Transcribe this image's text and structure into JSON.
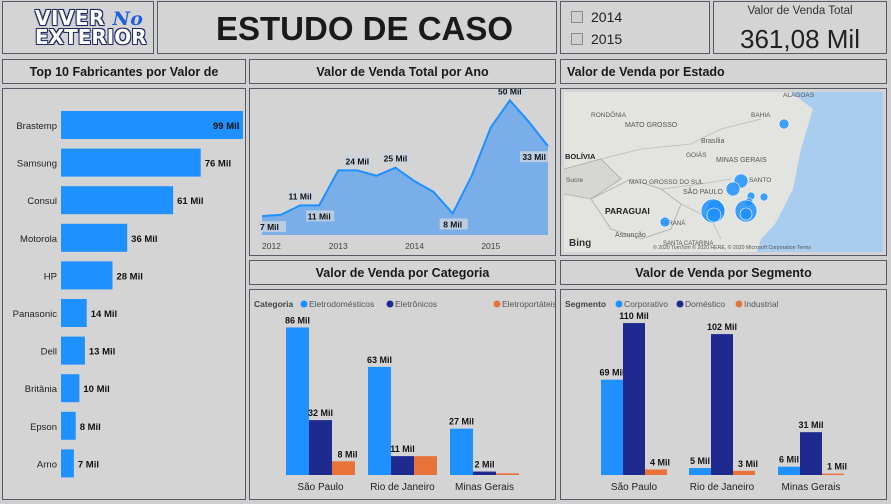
{
  "header": {
    "logo_line1": "VIVER",
    "logo_script": "No",
    "logo_line2": "EXTERIOR",
    "title": "ESTUDO DE CASO",
    "year_options": [
      "2014",
      "2015"
    ],
    "kpi_label": "Valor de Venda Total",
    "kpi_value": "361,08 Mil"
  },
  "colors": {
    "primary": "#1e90ff",
    "dark": "#1f2a8f",
    "orange": "#e8733a",
    "area": "#7aaee8"
  },
  "charts": {
    "manufacturers": {
      "title": "Top 10 Fabricantes por Valor de",
      "chart_data": {
        "type": "bar",
        "orientation": "horizontal",
        "categories": [
          "Brastemp",
          "Samsung",
          "Consul",
          "Motorola",
          "HP",
          "Panasonic",
          "Dell",
          "Britânia",
          "Epson",
          "Arno"
        ],
        "values": [
          99,
          76,
          61,
          36,
          28,
          14,
          13,
          10,
          8,
          7
        ],
        "labels": [
          "99 Mil",
          "76 Mil",
          "61 Mil",
          "36 Mil",
          "28 Mil",
          "14 Mil",
          "13 Mil",
          "10 Mil",
          "8 Mil",
          "7 Mil"
        ]
      }
    },
    "by_year": {
      "title": "Valor de Venda Total por Ano",
      "chart_data": {
        "type": "area",
        "x_ticks": [
          "2012",
          "2013",
          "2014",
          "2015"
        ],
        "x": [
          2012.0,
          2012.25,
          2012.5,
          2012.75,
          2013.0,
          2013.25,
          2013.5,
          2013.75,
          2014.0,
          2014.25,
          2014.5,
          2014.75,
          2015.0,
          2015.25,
          2015.5,
          2015.75
        ],
        "y": [
          7,
          7.5,
          11,
          11,
          24,
          24,
          22,
          25,
          20,
          16,
          8,
          22,
          40,
          50,
          42,
          33
        ],
        "labels": [
          {
            "i": 0,
            "text": "7 Mil"
          },
          {
            "i": 2,
            "text": "11 Mil"
          },
          {
            "i": 3,
            "text": "11 Mil"
          },
          {
            "i": 5,
            "text": "24 Mil"
          },
          {
            "i": 7,
            "text": "25 Mil"
          },
          {
            "i": 10,
            "text": "8 Mil"
          },
          {
            "i": 13,
            "text": "50 Mil"
          },
          {
            "i": 15,
            "text": "33 Mil"
          }
        ],
        "ylim": [
          0,
          52
        ]
      }
    },
    "by_state": {
      "title": "Valor de Venda por Estado",
      "map_labels": [
        "ALAGOAS",
        "RONDÔNIA",
        "MATO GROSSO",
        "BAHIA",
        "Brasília",
        "GOIÁS",
        "BOLÍVIA",
        "MINAS GERAIS",
        "MATO GROSSO DO SUL",
        "Sucre",
        "SÃO PAULO",
        "SANTO",
        "PARAGUAI",
        "PARANÁ",
        "Assunção",
        "SANTA CATARINA"
      ],
      "bing": "Bing",
      "attribution": "© 2020 TomTom © 2020 HERE, © 2020 Microsoft Corporation  Terms"
    },
    "by_category": {
      "title": "Valor de Venda por Categoria",
      "legend_title": "Categoria",
      "chart_data": {
        "type": "bar",
        "categories": [
          "São Paulo",
          "Rio de Janeiro",
          "Minas Gerais"
        ],
        "series": [
          {
            "name": "Eletrodomésticos",
            "values": [
              86,
              63,
              27
            ],
            "labels": [
              "86 Mil",
              "63 Mil",
              "27 Mil"
            ]
          },
          {
            "name": "Eletrônicos",
            "values": [
              32,
              11,
              2
            ],
            "labels": [
              "32 Mil",
              "11 Mil",
              "2 Mil"
            ]
          },
          {
            "name": "Eletroportáteis",
            "values": [
              8,
              11,
              1
            ],
            "labels": [
              "8 Mil",
              "",
              ""
            ]
          }
        ],
        "ylim": [
          0,
          95
        ]
      }
    },
    "by_segment": {
      "title": "Valor de Venda por Segmento",
      "legend_title": "Segmento",
      "chart_data": {
        "type": "bar",
        "categories": [
          "São Paulo",
          "Rio de Janeiro",
          "Minas Gerais"
        ],
        "series": [
          {
            "name": "Corporativo",
            "values": [
              69,
              5,
              6
            ],
            "labels": [
              "69 Mil",
              "5 Mil",
              "6 Mil"
            ]
          },
          {
            "name": "Doméstico",
            "values": [
              110,
              102,
              31
            ],
            "labels": [
              "110 Mil",
              "102 Mil",
              "31 Mil"
            ]
          },
          {
            "name": "Industrial",
            "values": [
              4,
              3,
              1
            ],
            "labels": [
              "4 Mil",
              "3 Mil",
              "1 Mil"
            ]
          }
        ],
        "ylim": [
          0,
          118
        ]
      }
    }
  }
}
